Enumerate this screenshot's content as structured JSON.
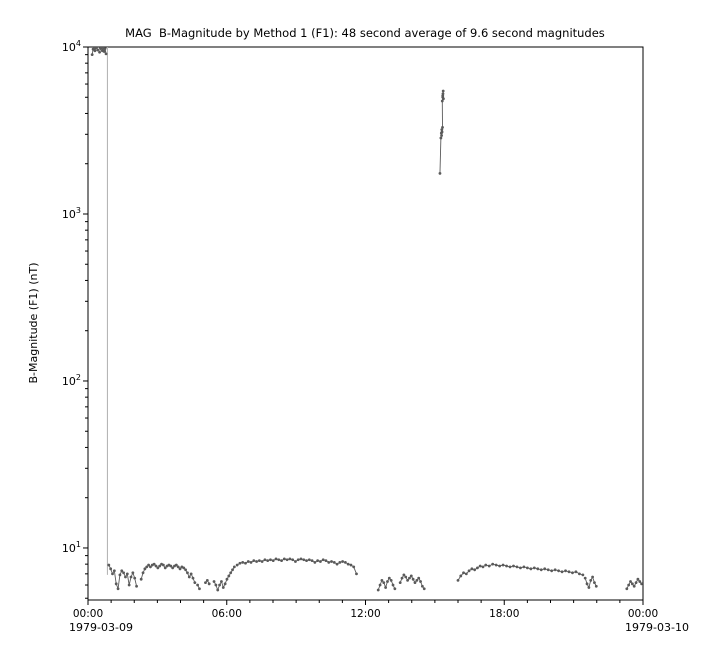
{
  "chart_data": {
    "type": "scatter",
    "title": "MAG  B-Magnitude by Method 1 (F1): 48 second average of 9.6 second magnitudes",
    "ylabel": "B-Magnitude (F1) (nT)",
    "x_axis": {
      "range_hours": [
        0,
        24
      ],
      "minor_tick_interval_hours": 1,
      "major_ticks": [
        {
          "hour": 0,
          "label": "00:00"
        },
        {
          "hour": 6,
          "label": "06:00"
        },
        {
          "hour": 12,
          "label": "12:00"
        },
        {
          "hour": 18,
          "label": "18:00"
        },
        {
          "hour": 24,
          "label": "00:00"
        }
      ],
      "date_left": "1979-03-09",
      "date_right": "1979-03-10"
    },
    "y_axis": {
      "scale": "log",
      "ylim": [
        4.88,
        10000
      ],
      "unit": "nT",
      "major_ticks": [
        {
          "value": 10,
          "exp": 1
        },
        {
          "value": 100,
          "exp": 2
        },
        {
          "value": 1000,
          "exp": 3
        },
        {
          "value": 10000,
          "exp": 4
        }
      ]
    },
    "style": {
      "data_color": "#5a5a5a",
      "gap_line_color": "#b0b0b0",
      "frame_color": "#000000",
      "background": "#ffffff"
    },
    "series": [
      {
        "name": "data-gap-line",
        "color": "#b0b0b0",
        "draw_points": false,
        "segments": [
          [
            [
              0.84,
              10000
            ],
            [
              0.84,
              6.9
            ]
          ]
        ]
      },
      {
        "name": "b-magnitude-f1",
        "color": "#5a5a5a",
        "draw_points": true,
        "segments": [
          [
            [
              0.18,
              9000
            ],
            [
              0.22,
              9700
            ],
            [
              0.26,
              10000
            ],
            [
              0.3,
              9500
            ],
            [
              0.34,
              9900
            ],
            [
              0.38,
              10000
            ],
            [
              0.42,
              9600
            ]
          ],
          [
            [
              0.5,
              9300
            ],
            [
              0.54,
              9800
            ],
            [
              0.58,
              10000
            ],
            [
              0.62,
              9500
            ],
            [
              0.66,
              9900
            ],
            [
              0.7,
              9400
            ],
            [
              0.74,
              9800
            ],
            [
              0.78,
              9100
            ]
          ],
          [
            [
              0.9,
              7.9
            ],
            [
              0.98,
              7.5
            ],
            [
              1.06,
              7.0
            ],
            [
              1.14,
              7.3
            ],
            [
              1.22,
              6.1
            ],
            [
              1.3,
              5.7
            ],
            [
              1.38,
              6.9
            ],
            [
              1.46,
              7.3
            ],
            [
              1.54,
              7.1
            ],
            [
              1.62,
              6.7
            ],
            [
              1.7,
              7.0
            ],
            [
              1.78,
              6.0
            ],
            [
              1.86,
              6.7
            ],
            [
              1.94,
              7.1
            ],
            [
              2.02,
              6.6
            ],
            [
              2.1,
              5.9
            ]
          ],
          [
            [
              2.3,
              6.5
            ],
            [
              2.38,
              7.1
            ],
            [
              2.46,
              7.5
            ],
            [
              2.54,
              7.7
            ],
            [
              2.62,
              7.9
            ],
            [
              2.7,
              7.7
            ],
            [
              2.78,
              7.9
            ],
            [
              2.86,
              8.0
            ],
            [
              2.94,
              7.8
            ],
            [
              3.02,
              7.6
            ],
            [
              3.1,
              7.8
            ],
            [
              3.18,
              8.0
            ],
            [
              3.26,
              7.9
            ],
            [
              3.34,
              7.6
            ],
            [
              3.42,
              7.8
            ],
            [
              3.5,
              7.9
            ],
            [
              3.58,
              7.8
            ],
            [
              3.66,
              7.6
            ],
            [
              3.74,
              7.8
            ],
            [
              3.82,
              7.9
            ],
            [
              3.9,
              7.7
            ],
            [
              3.98,
              7.5
            ],
            [
              4.06,
              7.7
            ],
            [
              4.14,
              7.6
            ],
            [
              4.22,
              7.4
            ],
            [
              4.3,
              7.1
            ],
            [
              4.38,
              6.7
            ],
            [
              4.46,
              7.0
            ],
            [
              4.54,
              6.6
            ],
            [
              4.62,
              6.2
            ]
          ],
          [
            [
              4.74,
              6.0
            ],
            [
              4.82,
              5.7
            ]
          ],
          [
            [
              5.08,
              6.2
            ],
            [
              5.16,
              6.4
            ],
            [
              5.24,
              6.1
            ]
          ],
          [
            [
              5.45,
              6.3
            ],
            [
              5.53,
              6.0
            ],
            [
              5.61,
              5.6
            ],
            [
              5.69,
              6.0
            ],
            [
              5.77,
              6.3
            ],
            [
              5.85,
              5.8
            ],
            [
              5.93,
              6.1
            ],
            [
              6.01,
              6.5
            ],
            [
              6.09,
              6.8
            ],
            [
              6.17,
              7.1
            ],
            [
              6.25,
              7.4
            ],
            [
              6.33,
              7.7
            ]
          ],
          [
            [
              6.45,
              7.9
            ],
            [
              6.57,
              8.1
            ],
            [
              6.69,
              8.2
            ],
            [
              6.81,
              8.1
            ],
            [
              6.93,
              8.3
            ],
            [
              7.05,
              8.2
            ],
            [
              7.17,
              8.4
            ],
            [
              7.29,
              8.3
            ],
            [
              7.41,
              8.4
            ],
            [
              7.53,
              8.3
            ],
            [
              7.65,
              8.5
            ],
            [
              7.77,
              8.4
            ],
            [
              7.89,
              8.5
            ],
            [
              8.01,
              8.4
            ],
            [
              8.13,
              8.6
            ],
            [
              8.25,
              8.5
            ],
            [
              8.37,
              8.4
            ],
            [
              8.49,
              8.6
            ],
            [
              8.61,
              8.5
            ],
            [
              8.73,
              8.6
            ],
            [
              8.85,
              8.5
            ],
            [
              8.97,
              8.3
            ],
            [
              9.09,
              8.5
            ],
            [
              9.21,
              8.6
            ],
            [
              9.33,
              8.5
            ],
            [
              9.45,
              8.4
            ],
            [
              9.57,
              8.5
            ],
            [
              9.69,
              8.4
            ],
            [
              9.81,
              8.2
            ],
            [
              9.93,
              8.4
            ],
            [
              10.05,
              8.3
            ],
            [
              10.17,
              8.5
            ],
            [
              10.29,
              8.4
            ],
            [
              10.41,
              8.2
            ],
            [
              10.53,
              8.3
            ],
            [
              10.65,
              8.2
            ],
            [
              10.77,
              8.0
            ],
            [
              10.89,
              8.2
            ],
            [
              11.01,
              8.3
            ],
            [
              11.13,
              8.2
            ],
            [
              11.25,
              8.0
            ],
            [
              11.37,
              7.9
            ],
            [
              11.49,
              7.7
            ],
            [
              11.61,
              7.0
            ]
          ],
          [
            [
              12.55,
              5.6
            ],
            [
              12.63,
              6.0
            ],
            [
              12.71,
              6.4
            ],
            [
              12.79,
              6.2
            ],
            [
              12.87,
              5.8
            ],
            [
              12.95,
              6.3
            ],
            [
              13.03,
              6.6
            ],
            [
              13.11,
              6.4
            ],
            [
              13.19,
              6.0
            ],
            [
              13.27,
              5.7
            ]
          ],
          [
            [
              13.5,
              6.2
            ],
            [
              13.58,
              6.6
            ],
            [
              13.66,
              6.9
            ],
            [
              13.74,
              6.7
            ],
            [
              13.82,
              6.4
            ],
            [
              13.9,
              6.6
            ],
            [
              13.98,
              6.8
            ],
            [
              14.06,
              6.5
            ],
            [
              14.14,
              6.2
            ],
            [
              14.22,
              6.4
            ],
            [
              14.3,
              6.6
            ],
            [
              14.38,
              6.3
            ],
            [
              14.46,
              5.9
            ],
            [
              14.54,
              5.7
            ]
          ],
          [
            [
              15.22,
              1750
            ],
            [
              15.26,
              2850
            ],
            [
              15.28,
              3050
            ],
            [
              15.3,
              3200
            ],
            [
              15.29,
              2950
            ],
            [
              15.31,
              3100
            ],
            [
              15.33,
              3300
            ],
            [
              15.32,
              4750
            ],
            [
              15.34,
              5000
            ],
            [
              15.35,
              5250
            ],
            [
              15.36,
              5450
            ],
            [
              15.34,
              5100
            ],
            [
              15.37,
              4900
            ]
          ],
          [
            [
              16.0,
              6.4
            ],
            [
              16.12,
              6.8
            ],
            [
              16.24,
              7.1
            ],
            [
              16.36,
              7.0
            ],
            [
              16.48,
              7.3
            ],
            [
              16.6,
              7.5
            ],
            [
              16.72,
              7.4
            ],
            [
              16.84,
              7.6
            ],
            [
              16.96,
              7.8
            ],
            [
              17.08,
              7.7
            ],
            [
              17.2,
              7.9
            ],
            [
              17.35,
              7.8
            ],
            [
              17.5,
              8.0
            ],
            [
              17.65,
              7.9
            ],
            [
              17.8,
              7.8
            ],
            [
              17.95,
              7.9
            ],
            [
              18.1,
              7.8
            ],
            [
              18.25,
              7.7
            ],
            [
              18.4,
              7.8
            ],
            [
              18.55,
              7.7
            ],
            [
              18.7,
              7.6
            ],
            [
              18.85,
              7.7
            ],
            [
              19.0,
              7.6
            ],
            [
              19.15,
              7.5
            ],
            [
              19.3,
              7.6
            ],
            [
              19.45,
              7.5
            ],
            [
              19.6,
              7.4
            ],
            [
              19.75,
              7.5
            ],
            [
              19.9,
              7.4
            ],
            [
              20.05,
              7.3
            ],
            [
              20.2,
              7.4
            ],
            [
              20.35,
              7.3
            ],
            [
              20.5,
              7.2
            ],
            [
              20.65,
              7.3
            ],
            [
              20.8,
              7.2
            ],
            [
              20.95,
              7.1
            ],
            [
              21.1,
              7.2
            ],
            [
              21.25,
              7.0
            ],
            [
              21.4,
              6.9
            ]
          ],
          [
            [
              21.5,
              6.6
            ],
            [
              21.58,
              6.1
            ],
            [
              21.66,
              5.8
            ],
            [
              21.74,
              6.4
            ],
            [
              21.82,
              6.7
            ],
            [
              21.9,
              6.2
            ],
            [
              21.98,
              5.9
            ]
          ],
          [
            [
              23.3,
              5.7
            ],
            [
              23.38,
              6.0
            ],
            [
              23.46,
              6.3
            ],
            [
              23.54,
              6.1
            ],
            [
              23.62,
              5.9
            ],
            [
              23.7,
              6.2
            ],
            [
              23.78,
              6.5
            ],
            [
              23.86,
              6.3
            ],
            [
              23.94,
              6.1
            ]
          ]
        ]
      }
    ]
  }
}
